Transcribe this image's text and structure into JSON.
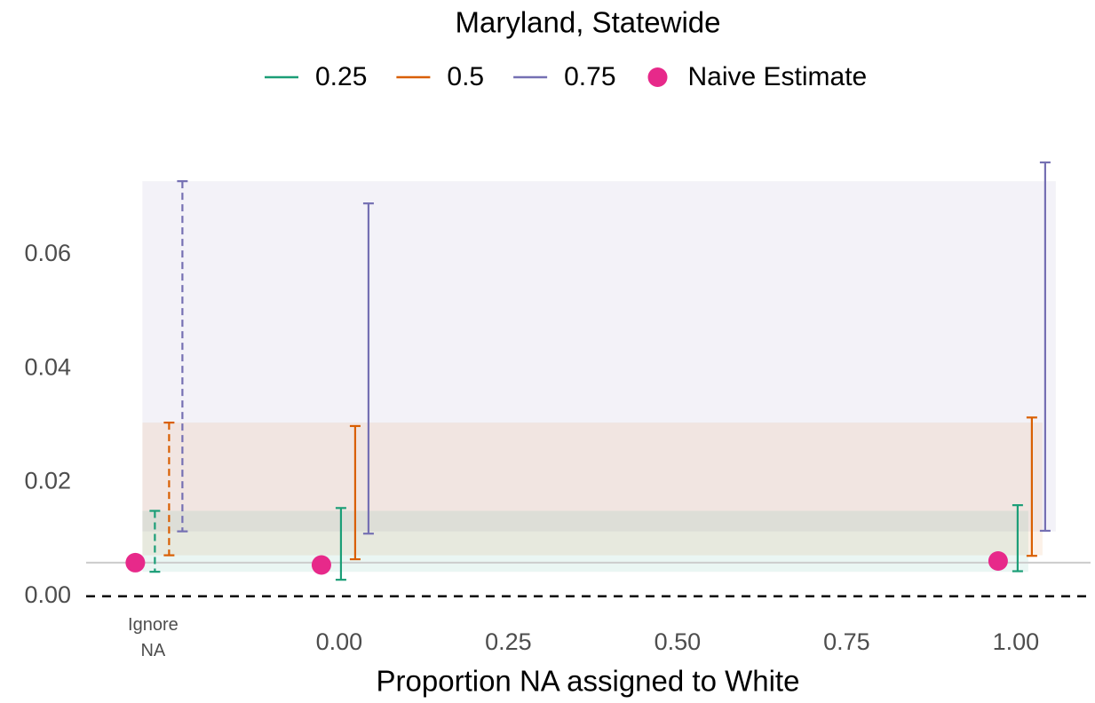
{
  "chart_data": {
    "type": "errorbar",
    "title": "Maryland, Statewide",
    "x_label": "Proportion NA assigned to White",
    "x": [
      -0.275,
      0,
      1
    ],
    "xlim": [
      -0.37,
      1.113
    ],
    "xticks": [
      {
        "value": -0.275,
        "label": "Ignore NA"
      },
      {
        "value": 0,
        "label": "0.00"
      },
      {
        "value": 0.25,
        "label": "0.25"
      },
      {
        "value": 0.5,
        "label": "0.50"
      },
      {
        "value": 0.75,
        "label": "0.75"
      },
      {
        "value": 1,
        "label": "1.00"
      }
    ],
    "ylim": [
      -0.003,
      0.079
    ],
    "yticks": [
      {
        "value": 0,
        "label": "0.00"
      },
      {
        "value": 0.02,
        "label": "0.02"
      },
      {
        "value": 0.04,
        "label": "0.04"
      },
      {
        "value": 0.06,
        "label": "0.06"
      }
    ],
    "series": [
      {
        "name": "0.25",
        "color": "#1b9e77",
        "lower": [
          0.0043,
          0.0029,
          0.0044
        ],
        "upper": [
          0.015,
          0.0155,
          0.016
        ]
      },
      {
        "name": "0.5",
        "color": "#d95f02",
        "lower": [
          0.0072,
          0.0065,
          0.0071
        ],
        "upper": [
          0.0305,
          0.0299,
          0.0314
        ]
      },
      {
        "name": "0.75",
        "color": "#7570b3",
        "lower": [
          0.0114,
          0.011,
          0.0115
        ],
        "upper": [
          0.0729,
          0.069,
          0.0762
        ]
      }
    ],
    "points": {
      "name": "Naive Estimate",
      "color": "#e7298a",
      "values": [
        0.0059,
        0.0055,
        0.0062
      ]
    },
    "reference_lines": [
      {
        "value": 0,
        "color": "#000000",
        "dashed": true
      },
      {
        "value": 0.0059,
        "color": "#cccccc",
        "dashed": false
      }
    ]
  }
}
